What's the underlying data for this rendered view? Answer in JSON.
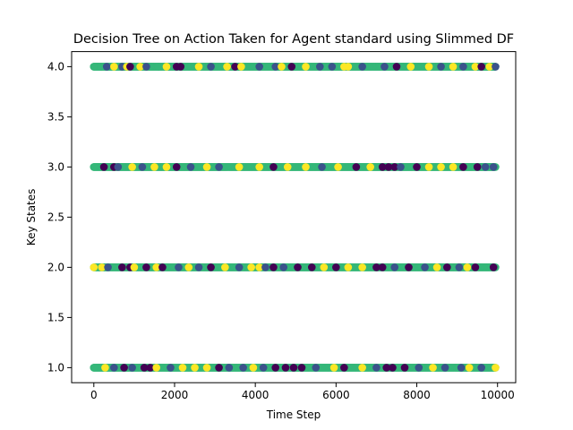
{
  "chart_data": {
    "type": "scatter",
    "title": "Decision Tree on Action Taken for Agent standard using Slimmed DF",
    "xlabel": "Time Step",
    "ylabel": "Key States",
    "xlim": [
      -550,
      10450
    ],
    "ylim": [
      0.85,
      4.15
    ],
    "x_ticks": [
      0,
      2000,
      4000,
      6000,
      8000,
      10000
    ],
    "x_tick_labels": [
      "0",
      "2000",
      "4000",
      "6000",
      "8000",
      "10000"
    ],
    "y_ticks": [
      1.0,
      1.5,
      2.0,
      2.5,
      3.0,
      3.5,
      4.0
    ],
    "y_tick_labels": [
      "1.0",
      "1.5",
      "2.0",
      "2.5",
      "3.0",
      "3.5",
      "4.0"
    ],
    "grid": false,
    "legend": "none",
    "colormap": "viridis",
    "class_colors": [
      "#440154",
      "#3b528b",
      "#35b779",
      "#fde725"
    ],
    "series": [
      {
        "y": 4.0,
        "x_start": 0,
        "x_end": 9950,
        "points": [
          {
            "x": 0,
            "c": 2
          },
          {
            "x": 180,
            "c": 2
          },
          {
            "x": 320,
            "c": 1
          },
          {
            "x": 500,
            "c": 3
          },
          {
            "x": 700,
            "c": 1
          },
          {
            "x": 820,
            "c": 3
          },
          {
            "x": 900,
            "c": 0
          },
          {
            "x": 1150,
            "c": 3
          },
          {
            "x": 1300,
            "c": 1
          },
          {
            "x": 1600,
            "c": 2
          },
          {
            "x": 1800,
            "c": 3
          },
          {
            "x": 2050,
            "c": 0
          },
          {
            "x": 2150,
            "c": 0
          },
          {
            "x": 2600,
            "c": 3
          },
          {
            "x": 2900,
            "c": 1
          },
          {
            "x": 3300,
            "c": 3
          },
          {
            "x": 3500,
            "c": 0
          },
          {
            "x": 3650,
            "c": 3
          },
          {
            "x": 4100,
            "c": 1
          },
          {
            "x": 4500,
            "c": 1
          },
          {
            "x": 4650,
            "c": 3
          },
          {
            "x": 4900,
            "c": 0
          },
          {
            "x": 5250,
            "c": 3
          },
          {
            "x": 5600,
            "c": 1
          },
          {
            "x": 5900,
            "c": 1
          },
          {
            "x": 6200,
            "c": 3
          },
          {
            "x": 6300,
            "c": 3
          },
          {
            "x": 6650,
            "c": 1
          },
          {
            "x": 7200,
            "c": 1
          },
          {
            "x": 7500,
            "c": 0
          },
          {
            "x": 7850,
            "c": 3
          },
          {
            "x": 8300,
            "c": 3
          },
          {
            "x": 8600,
            "c": 1
          },
          {
            "x": 8900,
            "c": 3
          },
          {
            "x": 9150,
            "c": 1
          },
          {
            "x": 9450,
            "c": 3
          },
          {
            "x": 9600,
            "c": 0
          },
          {
            "x": 9800,
            "c": 3
          },
          {
            "x": 9950,
            "c": 1
          }
        ]
      },
      {
        "y": 3.0,
        "x_start": 0,
        "x_end": 9950,
        "points": [
          {
            "x": 0,
            "c": 2
          },
          {
            "x": 250,
            "c": 0
          },
          {
            "x": 500,
            "c": 0
          },
          {
            "x": 600,
            "c": 1
          },
          {
            "x": 950,
            "c": 3
          },
          {
            "x": 1200,
            "c": 1
          },
          {
            "x": 1500,
            "c": 3
          },
          {
            "x": 1800,
            "c": 3
          },
          {
            "x": 2050,
            "c": 0
          },
          {
            "x": 2400,
            "c": 1
          },
          {
            "x": 2800,
            "c": 3
          },
          {
            "x": 3100,
            "c": 1
          },
          {
            "x": 3600,
            "c": 3
          },
          {
            "x": 4100,
            "c": 3
          },
          {
            "x": 4450,
            "c": 0
          },
          {
            "x": 4800,
            "c": 3
          },
          {
            "x": 5250,
            "c": 3
          },
          {
            "x": 5650,
            "c": 1
          },
          {
            "x": 6050,
            "c": 3
          },
          {
            "x": 6500,
            "c": 0
          },
          {
            "x": 6850,
            "c": 3
          },
          {
            "x": 7150,
            "c": 0
          },
          {
            "x": 7300,
            "c": 0
          },
          {
            "x": 7450,
            "c": 0
          },
          {
            "x": 7600,
            "c": 1
          },
          {
            "x": 8000,
            "c": 0
          },
          {
            "x": 8300,
            "c": 3
          },
          {
            "x": 8600,
            "c": 3
          },
          {
            "x": 8900,
            "c": 3
          },
          {
            "x": 9150,
            "c": 0
          },
          {
            "x": 9500,
            "c": 0
          },
          {
            "x": 9700,
            "c": 1
          },
          {
            "x": 9900,
            "c": 1
          }
        ]
      },
      {
        "y": 2.0,
        "x_start": 0,
        "x_end": 9950,
        "points": [
          {
            "x": 0,
            "c": 3
          },
          {
            "x": 200,
            "c": 3
          },
          {
            "x": 350,
            "c": 1
          },
          {
            "x": 700,
            "c": 0
          },
          {
            "x": 900,
            "c": 0
          },
          {
            "x": 1000,
            "c": 3
          },
          {
            "x": 1300,
            "c": 0
          },
          {
            "x": 1550,
            "c": 3
          },
          {
            "x": 1700,
            "c": 0
          },
          {
            "x": 2100,
            "c": 1
          },
          {
            "x": 2350,
            "c": 3
          },
          {
            "x": 2600,
            "c": 1
          },
          {
            "x": 2900,
            "c": 0
          },
          {
            "x": 3250,
            "c": 3
          },
          {
            "x": 3600,
            "c": 1
          },
          {
            "x": 3900,
            "c": 3
          },
          {
            "x": 4100,
            "c": 3
          },
          {
            "x": 4250,
            "c": 1
          },
          {
            "x": 4450,
            "c": 0
          },
          {
            "x": 4700,
            "c": 1
          },
          {
            "x": 5050,
            "c": 0
          },
          {
            "x": 5400,
            "c": 0
          },
          {
            "x": 5700,
            "c": 3
          },
          {
            "x": 6000,
            "c": 0
          },
          {
            "x": 6300,
            "c": 3
          },
          {
            "x": 6650,
            "c": 3
          },
          {
            "x": 7000,
            "c": 0
          },
          {
            "x": 7150,
            "c": 0
          },
          {
            "x": 7450,
            "c": 1
          },
          {
            "x": 7800,
            "c": 0
          },
          {
            "x": 8200,
            "c": 1
          },
          {
            "x": 8500,
            "c": 3
          },
          {
            "x": 8750,
            "c": 0
          },
          {
            "x": 9050,
            "c": 1
          },
          {
            "x": 9250,
            "c": 3
          },
          {
            "x": 9450,
            "c": 0
          },
          {
            "x": 9900,
            "c": 0
          }
        ]
      },
      {
        "y": 1.0,
        "x_start": 0,
        "x_end": 9950,
        "points": [
          {
            "x": 0,
            "c": 2
          },
          {
            "x": 280,
            "c": 3
          },
          {
            "x": 500,
            "c": 1
          },
          {
            "x": 750,
            "c": 0
          },
          {
            "x": 950,
            "c": 1
          },
          {
            "x": 1250,
            "c": 0
          },
          {
            "x": 1400,
            "c": 0
          },
          {
            "x": 1550,
            "c": 3
          },
          {
            "x": 1900,
            "c": 1
          },
          {
            "x": 2200,
            "c": 3
          },
          {
            "x": 2500,
            "c": 3
          },
          {
            "x": 2800,
            "c": 3
          },
          {
            "x": 3100,
            "c": 0
          },
          {
            "x": 3350,
            "c": 1
          },
          {
            "x": 3700,
            "c": 1
          },
          {
            "x": 3950,
            "c": 3
          },
          {
            "x": 4200,
            "c": 1
          },
          {
            "x": 4500,
            "c": 0
          },
          {
            "x": 4750,
            "c": 0
          },
          {
            "x": 4950,
            "c": 0
          },
          {
            "x": 5150,
            "c": 0
          },
          {
            "x": 5500,
            "c": 1
          },
          {
            "x": 5950,
            "c": 3
          },
          {
            "x": 6200,
            "c": 0
          },
          {
            "x": 6650,
            "c": 3
          },
          {
            "x": 7000,
            "c": 1
          },
          {
            "x": 7250,
            "c": 0
          },
          {
            "x": 7400,
            "c": 0
          },
          {
            "x": 7700,
            "c": 0
          },
          {
            "x": 8050,
            "c": 1
          },
          {
            "x": 8400,
            "c": 3
          },
          {
            "x": 8700,
            "c": 1
          },
          {
            "x": 9100,
            "c": 1
          },
          {
            "x": 9300,
            "c": 3
          },
          {
            "x": 9600,
            "c": 1
          },
          {
            "x": 9950,
            "c": 3
          }
        ]
      }
    ]
  }
}
